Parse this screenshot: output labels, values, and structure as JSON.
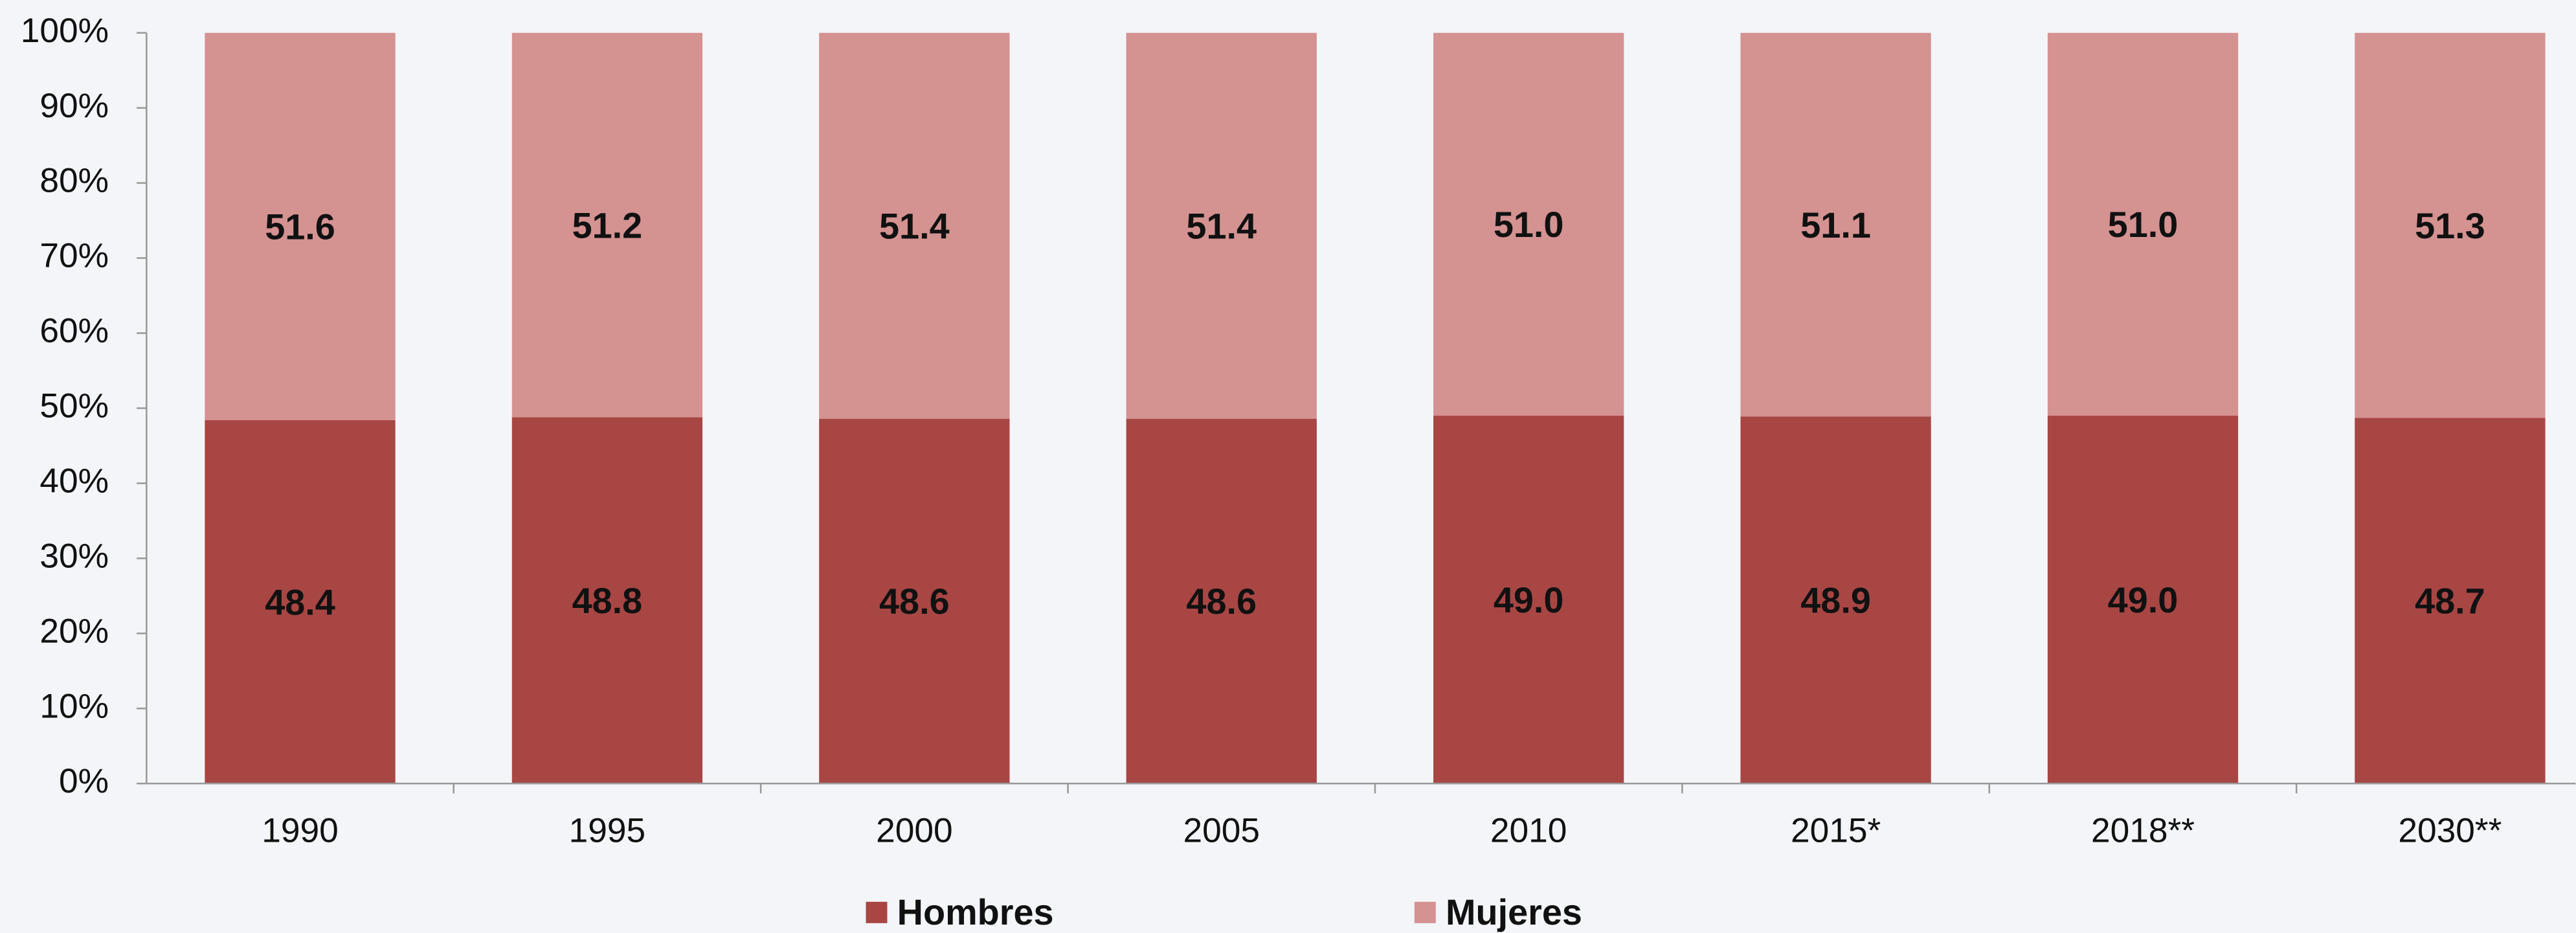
{
  "chart_data": {
    "type": "stacked_bar",
    "categories": [
      "1990",
      "1995",
      "2000",
      "2005",
      "2010",
      "2015*",
      "2018**",
      "2030**"
    ],
    "series": [
      {
        "name": "Hombres",
        "color": "#a84644",
        "values": [
          48.4,
          48.8,
          48.6,
          48.6,
          49.0,
          48.9,
          49.0,
          48.7
        ],
        "value_labels": [
          "48.4",
          "48.8",
          "48.6",
          "48.6",
          "49.0",
          "48.9",
          "49.0",
          "48.7"
        ]
      },
      {
        "name": "Mujeres",
        "color": "#d49291",
        "values": [
          51.6,
          51.2,
          51.4,
          51.4,
          51.0,
          51.1,
          51.0,
          51.3
        ],
        "value_labels": [
          "51.6",
          "51.2",
          "51.4",
          "51.4",
          "51.0",
          "51.1",
          "51.0",
          "51.3"
        ]
      }
    ],
    "ylim": [
      0,
      100
    ],
    "yticks": [
      {
        "value": 0,
        "label": "0%"
      },
      {
        "value": 10,
        "label": "10%"
      },
      {
        "value": 20,
        "label": "20%"
      },
      {
        "value": 30,
        "label": "30%"
      },
      {
        "value": 40,
        "label": "40%"
      },
      {
        "value": 50,
        "label": "50%"
      },
      {
        "value": 60,
        "label": "60%"
      },
      {
        "value": 70,
        "label": "70%"
      },
      {
        "value": 80,
        "label": "80%"
      },
      {
        "value": 90,
        "label": "90%"
      },
      {
        "value": 100,
        "label": "100%"
      }
    ],
    "legend": "bottom"
  }
}
